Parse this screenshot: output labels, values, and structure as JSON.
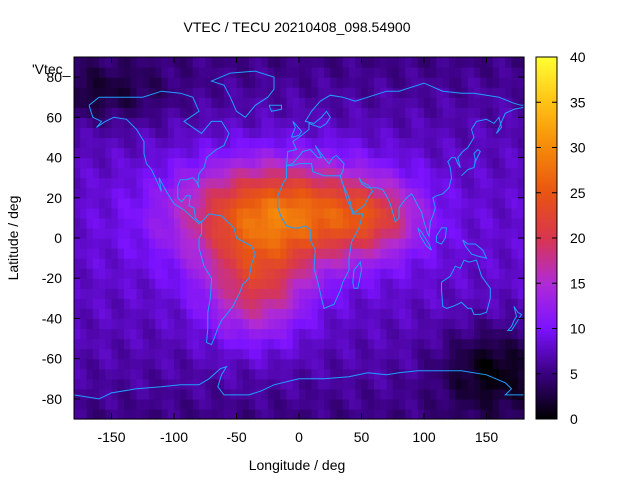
{
  "chart_data": {
    "type": "heatmap",
    "title": "VTEC / TECU 20210408_098.54900",
    "xlabel": "Longitude / deg",
    "ylabel": "Latitude / deg",
    "xlim": [
      -180,
      180
    ],
    "ylim": [
      -90,
      90
    ],
    "xticks": [
      "-150",
      "-100",
      "-50",
      "0",
      "50",
      "100",
      "150"
    ],
    "yticks": [
      "-80",
      "-60",
      "-40",
      "-20",
      "0",
      "20",
      "40",
      "60",
      "80"
    ],
    "xtick_values": [
      -150,
      -100,
      -50,
      0,
      50,
      100,
      150
    ],
    "ytick_values": [
      -80,
      -60,
      -40,
      -20,
      0,
      20,
      40,
      60,
      80
    ],
    "legend_entry": "'Vtec_",
    "colorbar": {
      "range": [
        0,
        40
      ],
      "ticks": [
        "0",
        "5",
        "10",
        "15",
        "20",
        "25",
        "30",
        "35",
        "40"
      ],
      "tick_values": [
        0,
        5,
        10,
        15,
        20,
        25,
        30,
        35,
        40
      ],
      "colormap": [
        "#000000",
        "#3a0080",
        "#7b12ff",
        "#b02bd6",
        "#d8364f",
        "#e85512",
        "#f58a0a",
        "#ffc314",
        "#ffff33"
      ]
    },
    "ionosphere_model": {
      "background_tecu": 8,
      "peaks": [
        {
          "lon": -15,
          "lat": 12,
          "amplitude_tecu": 20,
          "lon_sigma": 55,
          "lat_sigma": 18
        },
        {
          "lon": -35,
          "lat": -25,
          "amplitude_tecu": 11,
          "lon_sigma": 28,
          "lat_sigma": 18
        },
        {
          "lon": 60,
          "lat": 10,
          "amplitude_tecu": 8,
          "lon_sigma": 25,
          "lat_sigma": 12
        }
      ],
      "low_regions": [
        {
          "lon": 155,
          "lat": -65,
          "depth_tecu": 6,
          "lon_sigma": 30,
          "lat_sigma": 15
        },
        {
          "lon": -160,
          "lat": 72,
          "depth_tecu": 4,
          "lon_sigma": 40,
          "lat_sigma": 10
        }
      ]
    },
    "map_overlay": "coastlines",
    "coastline_color": "#1ea0ff"
  }
}
